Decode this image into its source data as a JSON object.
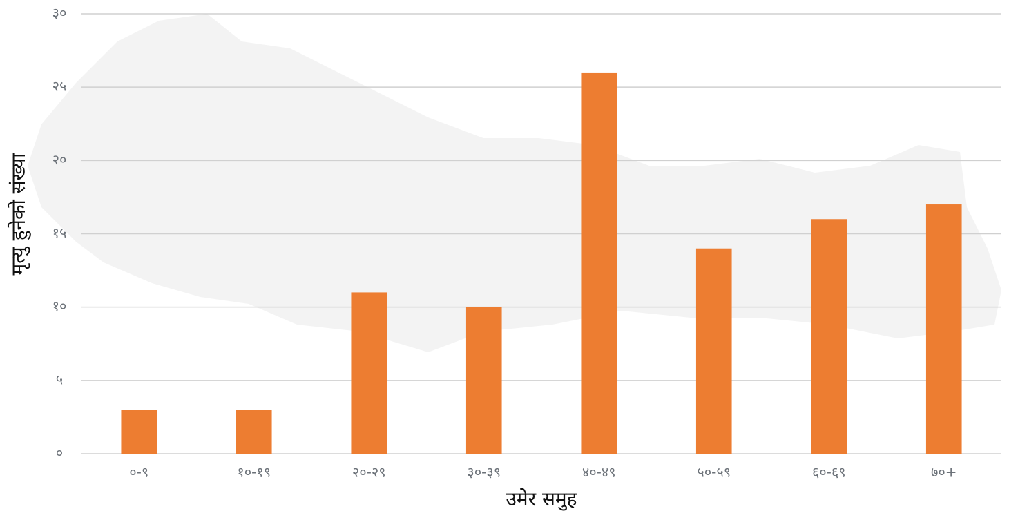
{
  "chart_data": {
    "type": "bar",
    "x_label": "उमेर समुह",
    "y_label": "मृत्यु हुनेको संख्या",
    "categories": [
      "०-९",
      "१०-१९",
      "२०-२९",
      "३०-३९",
      "४०-४९",
      "५०-५९",
      "६०-६९",
      "७०+"
    ],
    "values": [
      3,
      3,
      11,
      10,
      26,
      14,
      16,
      17
    ],
    "color": "#ed7d31",
    "ylim": [
      0,
      30
    ],
    "yticks": [
      {
        "value": 0,
        "label": "०"
      },
      {
        "value": 5,
        "label": "५"
      },
      {
        "value": 10,
        "label": "१०"
      },
      {
        "value": 15,
        "label": "१५"
      },
      {
        "value": 20,
        "label": "२०"
      },
      {
        "value": 25,
        "label": "२५"
      },
      {
        "value": 30,
        "label": "३०"
      }
    ],
    "grid": true
  }
}
